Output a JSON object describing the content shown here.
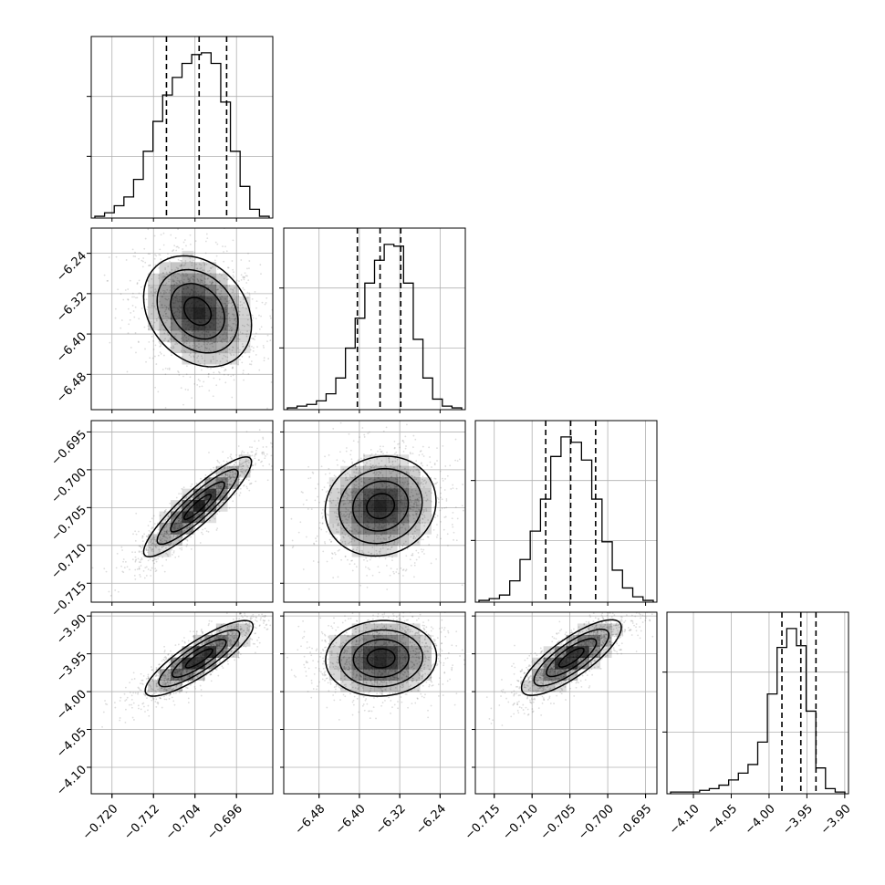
{
  "chart_data": {
    "type": "corner",
    "parameters": 4,
    "grid": true,
    "colors": {
      "line": "#000000",
      "grid": "#b0b0b0",
      "points": "#666666",
      "density": "#000000"
    },
    "axes": [
      {
        "range": [
          -0.724,
          -0.689
        ],
        "ticks": [
          -0.72,
          -0.712,
          -0.704,
          -0.696
        ],
        "tick_labels": [
          "−0.720",
          "−0.712",
          "−0.704",
          "−0.696"
        ]
      },
      {
        "range": [
          -6.55,
          -6.19
        ],
        "ticks": [
          -6.48,
          -6.4,
          -6.32,
          -6.24
        ],
        "tick_labels": [
          "−6.48",
          "−6.40",
          "−6.32",
          "−6.24"
        ]
      },
      {
        "range": [
          -0.7175,
          -0.6935
        ],
        "ticks": [
          -0.715,
          -0.71,
          -0.705,
          -0.7,
          -0.695
        ],
        "tick_labels": [
          "−0.715",
          "−0.710",
          "−0.705",
          "−0.700",
          "−0.695"
        ]
      },
      {
        "range": [
          -4.135,
          -3.895
        ],
        "ticks": [
          -4.1,
          -4.05,
          -4.0,
          -3.95,
          -3.9
        ],
        "tick_labels": [
          "−4.10",
          "−4.05",
          "−4.00",
          "−3.95",
          "−3.90"
        ]
      }
    ],
    "histograms": [
      {
        "param": 0,
        "quantiles": [
          -0.7095,
          -0.7032,
          -0.6979
        ],
        "counts": [
          1,
          3,
          7,
          12,
          22,
          38,
          55,
          70,
          80,
          88,
          93,
          94,
          88,
          66,
          38,
          18,
          5,
          1
        ]
      },
      {
        "param": 1,
        "quantiles": [
          -6.404,
          -6.359,
          -6.318
        ],
        "counts": [
          1,
          2,
          3,
          5,
          9,
          18,
          35,
          52,
          72,
          85,
          94,
          93,
          72,
          40,
          18,
          6,
          2,
          1
        ]
      },
      {
        "param": 2,
        "quantiles": [
          -0.7082,
          -0.7049,
          -0.7016
        ],
        "counts": [
          1,
          2,
          4,
          12,
          24,
          40,
          58,
          82,
          93,
          90,
          80,
          58,
          34,
          18,
          8,
          3,
          1
        ]
      },
      {
        "param": 3,
        "quantiles": [
          -3.983,
          -3.958,
          -3.938
        ],
        "counts": [
          1,
          1,
          1,
          2,
          3,
          5,
          8,
          12,
          17,
          30,
          58,
          85,
          96,
          86,
          48,
          15,
          3,
          1
        ]
      }
    ],
    "pairs": [
      {
        "x": 0,
        "y": 1,
        "corr": -0.25,
        "mean": [
          -0.7035,
          -6.355
        ],
        "sd": [
          0.0052,
          0.055
        ],
        "levels": [
          0.5,
          1.0,
          1.5,
          2.0
        ]
      },
      {
        "x": 0,
        "y": 2,
        "corr": 0.9,
        "mean": [
          -0.7035,
          -0.7049
        ],
        "sd": [
          0.0052,
          0.0033
        ],
        "levels": [
          0.5,
          1.0,
          1.5,
          2.0
        ]
      },
      {
        "x": 1,
        "y": 2,
        "corr": 0.1,
        "mean": [
          -6.358,
          -0.7048
        ],
        "sd": [
          0.055,
          0.0033
        ],
        "levels": [
          0.5,
          1.0,
          1.5,
          2.0
        ]
      },
      {
        "x": 0,
        "y": 3,
        "corr": 0.85,
        "mean": [
          -0.7032,
          -3.956
        ],
        "sd": [
          0.0052,
          0.025
        ],
        "levels": [
          0.5,
          1.0,
          1.5,
          2.0
        ]
      },
      {
        "x": 1,
        "y": 3,
        "corr": 0.05,
        "mean": [
          -6.357,
          -3.956
        ],
        "sd": [
          0.055,
          0.025
        ],
        "levels": [
          0.5,
          1.0,
          1.5,
          2.0
        ]
      },
      {
        "x": 2,
        "y": 3,
        "corr": 0.8,
        "mean": [
          -0.7048,
          -3.955
        ],
        "sd": [
          0.0033,
          0.025
        ],
        "levels": [
          0.5,
          1.0,
          1.5,
          2.0
        ]
      }
    ]
  }
}
